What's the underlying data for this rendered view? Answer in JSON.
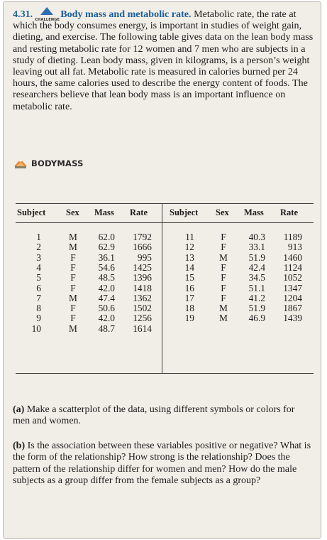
{
  "exercise": {
    "number": "4.31.",
    "badge_label": "CHALLENGE",
    "title": "Body mass and metabolic rate.",
    "text": "Metabolic rate, the rate at which the body consumes energy, is important in studies of weight gain, dieting, and exercise. The following table gives data on the lean body mass and resting metabolic rate for 12 women and 7 men who are subjects in a study of dieting. Lean body mass, given in kilograms, is a person’s weight leaving out all fat. Metabolic rate is measured in calories burned per 24 hours, the same calories used to describe the energy content of foods. The researchers believe that lean body mass is an important influence on metabolic rate.",
    "dataset_icon": "data-file-icon",
    "dataset_name": "BODYMASS"
  },
  "table": {
    "headers": [
      "Subject",
      "Sex",
      "Mass",
      "Rate"
    ],
    "left_rows": [
      {
        "subject": "1",
        "sex": "M",
        "mass": "62.0",
        "rate": "1792"
      },
      {
        "subject": "2",
        "sex": "M",
        "mass": "62.9",
        "rate": "1666"
      },
      {
        "subject": "3",
        "sex": "F",
        "mass": "36.1",
        "rate": "995"
      },
      {
        "subject": "4",
        "sex": "F",
        "mass": "54.6",
        "rate": "1425"
      },
      {
        "subject": "5",
        "sex": "F",
        "mass": "48.5",
        "rate": "1396"
      },
      {
        "subject": "6",
        "sex": "F",
        "mass": "42.0",
        "rate": "1418"
      },
      {
        "subject": "7",
        "sex": "M",
        "mass": "47.4",
        "rate": "1362"
      },
      {
        "subject": "8",
        "sex": "F",
        "mass": "50.6",
        "rate": "1502"
      },
      {
        "subject": "9",
        "sex": "F",
        "mass": "42.0",
        "rate": "1256"
      },
      {
        "subject": "10",
        "sex": "M",
        "mass": "48.7",
        "rate": "1614"
      }
    ],
    "right_rows": [
      {
        "subject": "11",
        "sex": "F",
        "mass": "40.3",
        "rate": "1189"
      },
      {
        "subject": "12",
        "sex": "F",
        "mass": "33.1",
        "rate": "913"
      },
      {
        "subject": "13",
        "sex": "M",
        "mass": "51.9",
        "rate": "1460"
      },
      {
        "subject": "14",
        "sex": "F",
        "mass": "42.4",
        "rate": "1124"
      },
      {
        "subject": "15",
        "sex": "F",
        "mass": "34.5",
        "rate": "1052"
      },
      {
        "subject": "16",
        "sex": "F",
        "mass": "51.1",
        "rate": "1347"
      },
      {
        "subject": "17",
        "sex": "F",
        "mass": "41.2",
        "rate": "1204"
      },
      {
        "subject": "18",
        "sex": "M",
        "mass": "51.9",
        "rate": "1867"
      },
      {
        "subject": "19",
        "sex": "M",
        "mass": "46.9",
        "rate": "1439"
      }
    ]
  },
  "parts": [
    {
      "label": "(a)",
      "text": "Make a scatterplot of the data, using different symbols or colors for men and women."
    },
    {
      "label": "(b)",
      "text": "Is the association between these variables positive or negative? What is the form of the relationship? How strong is the relationship? Does the pattern of the relationship differ for women and men? How do the male subjects as a group differ from the female subjects as a group?"
    }
  ],
  "colors": {
    "panel_bg": "#f1eee7",
    "accent_blue": "#1b5e9a",
    "text": "#1c1c1c"
  }
}
